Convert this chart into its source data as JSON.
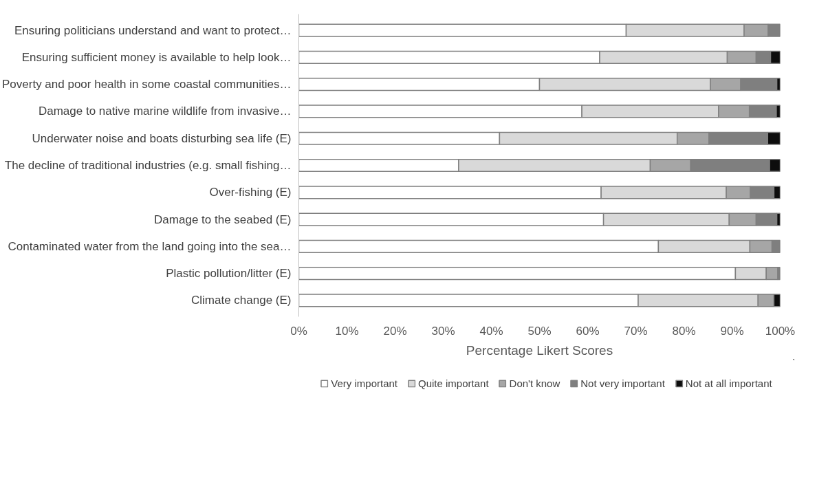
{
  "chart_data": {
    "type": "bar",
    "orientation": "horizontal",
    "stacked": true,
    "xlabel": "Percentage Likert Scores",
    "categories": [
      "Ensuring politicians understand and want to protect…",
      "Ensuring sufficient money is available to help look…",
      "Poverty and poor health in some coastal communities…",
      "Damage to native marine wildlife from invasive…",
      "Underwater noise and boats disturbing sea life (E)",
      "The decline of traditional industries (e.g. small fishing…",
      "Over-fishing (E)",
      "Damage to the seabed (E)",
      "Contaminated water from the land going into the sea…",
      "Plastic pollution/litter (E)",
      "Climate change (E)"
    ],
    "series": [
      {
        "name": "Very important",
        "color": "#ffffff",
        "values": [
          68,
          62.5,
          50,
          58.8,
          41.7,
          33.2,
          62.8,
          63.3,
          74.7,
          90.7,
          70.5
        ]
      },
      {
        "name": "Quite important",
        "color": "#d9d9d9",
        "values": [
          24.5,
          26.5,
          35.5,
          28.4,
          36.9,
          39.8,
          26,
          26.1,
          19,
          6.4,
          24.9
        ]
      },
      {
        "name": "Don't know",
        "color": "#a6a6a6",
        "values": [
          5,
          6,
          6.3,
          6.4,
          6.6,
          8.4,
          5,
          5.6,
          4.6,
          2.4,
          3.3
        ]
      },
      {
        "name": "Not very important",
        "color": "#7f7f7f",
        "values": [
          2.5,
          3,
          7.5,
          5.6,
          12.2,
          16.4,
          4.9,
          4.3,
          1.7,
          0.5,
          0
        ]
      },
      {
        "name": "Not at all important",
        "color": "#0d0d0d",
        "values": [
          0,
          2,
          0.7,
          0.8,
          2.6,
          2.2,
          1.3,
          0.7,
          0,
          0,
          1.3
        ]
      }
    ],
    "xlim": [
      0,
      100
    ],
    "xticks": [
      {
        "value": 0,
        "label": "0%"
      },
      {
        "value": 10,
        "label": "10%"
      },
      {
        "value": 20,
        "label": "20%"
      },
      {
        "value": 30,
        "label": "30%"
      },
      {
        "value": 40,
        "label": "40%"
      },
      {
        "value": 50,
        "label": "50%"
      },
      {
        "value": 60,
        "label": "60%"
      },
      {
        "value": 70,
        "label": "70%"
      },
      {
        "value": 80,
        "label": "80%"
      },
      {
        "value": 90,
        "label": "90%"
      },
      {
        "value": 100,
        "label": "100%"
      }
    ],
    "grid": false,
    "legend": "bottom"
  }
}
